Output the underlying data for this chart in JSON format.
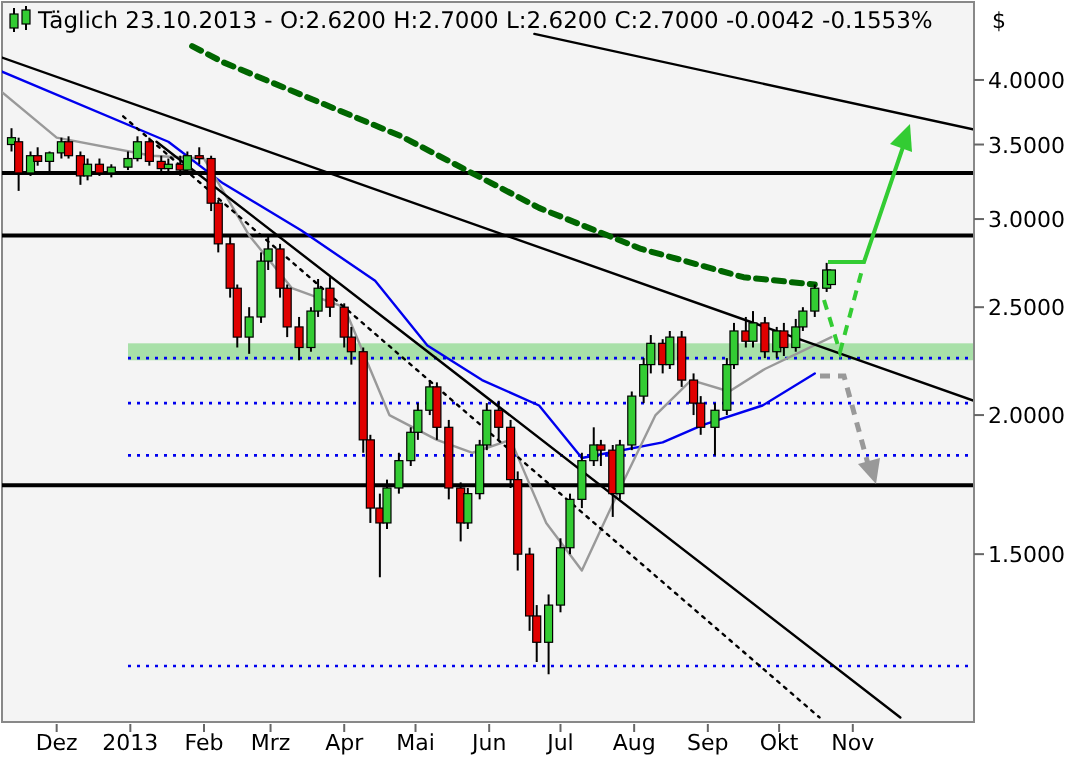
{
  "chart_data": {
    "type": "candlestick",
    "title": "Täglich 23.10.2013 - O:2.6200 H:2.7000 L:2.6200 C:2.7000 -0.0042 -0.1553%",
    "ylabel": "$",
    "log": true,
    "xlim": [
      "2012-11-08",
      "2013-12-22"
    ],
    "ylim": [
      1.06,
      4.7
    ],
    "xticks": [
      {
        "value": "2012-12-01",
        "label": "Dez"
      },
      {
        "value": "2013-01-01",
        "label": "2013"
      },
      {
        "value": "2013-02-01",
        "label": "Feb"
      },
      {
        "value": "2013-03-01",
        "label": "Mrz"
      },
      {
        "value": "2013-04-01",
        "label": "Apr"
      },
      {
        "value": "2013-05-01",
        "label": "Mai"
      },
      {
        "value": "2013-06-01",
        "label": "Jun"
      },
      {
        "value": "2013-07-01",
        "label": "Jul"
      },
      {
        "value": "2013-08-01",
        "label": "Aug"
      },
      {
        "value": "2013-09-01",
        "label": "Sep"
      },
      {
        "value": "2013-10-01",
        "label": "Okt"
      },
      {
        "value": "2013-11-01",
        "label": "Nov"
      }
    ],
    "yticks": [
      {
        "value": 1.5,
        "label": "1.5000"
      },
      {
        "value": 2,
        "label": "2.0000"
      },
      {
        "value": 2.5,
        "label": "2.5000"
      },
      {
        "value": 3,
        "label": "3.0000"
      },
      {
        "value": 3.5,
        "label": "3.5000"
      },
      {
        "value": 4,
        "label": "4.0000"
      }
    ],
    "grid": false,
    "x": [
      "2012-11-12",
      "2012-11-15",
      "2012-11-20",
      "2012-11-23",
      "2012-11-28",
      "2012-12-03",
      "2012-12-06",
      "2012-12-11",
      "2012-12-14",
      "2012-12-19",
      "2012-12-24",
      "2012-12-31",
      "2013-01-04",
      "2013-01-09",
      "2013-01-14",
      "2013-01-17",
      "2013-01-22",
      "2013-01-25",
      "2013-01-30",
      "2013-02-04",
      "2013-02-07",
      "2013-02-12",
      "2013-02-15",
      "2013-02-20",
      "2013-02-25",
      "2013-02-28",
      "2013-03-05",
      "2013-03-08",
      "2013-03-13",
      "2013-03-18",
      "2013-03-21",
      "2013-03-26",
      "2013-04-01",
      "2013-04-04",
      "2013-04-09",
      "2013-04-12",
      "2013-04-16",
      "2013-04-19",
      "2013-04-24",
      "2013-04-29",
      "2013-05-02",
      "2013-05-07",
      "2013-05-10",
      "2013-05-15",
      "2013-05-20",
      "2013-05-23",
      "2013-05-28",
      "2013-05-31",
      "2013-06-05",
      "2013-06-10",
      "2013-06-13",
      "2013-06-18",
      "2013-06-21",
      "2013-06-26",
      "2013-07-01",
      "2013-07-05",
      "2013-07-10",
      "2013-07-15",
      "2013-07-18",
      "2013-07-23",
      "2013-07-26",
      "2013-07-31",
      "2013-08-05",
      "2013-08-08",
      "2013-08-13",
      "2013-08-16",
      "2013-08-21",
      "2013-08-26",
      "2013-08-29",
      "2013-09-04",
      "2013-09-09",
      "2013-09-12",
      "2013-09-17",
      "2013-09-20",
      "2013-09-25",
      "2013-09-30",
      "2013-10-03",
      "2013-10-08",
      "2013-10-11",
      "2013-10-16",
      "2013-10-21",
      "2013-10-23"
    ],
    "ohlc": [
      [
        3.5,
        3.62,
        3.45,
        3.55
      ],
      [
        3.52,
        3.55,
        3.18,
        3.3
      ],
      [
        3.3,
        3.45,
        3.28,
        3.42
      ],
      [
        3.42,
        3.48,
        3.35,
        3.38
      ],
      [
        3.38,
        3.45,
        3.3,
        3.44
      ],
      [
        3.44,
        3.55,
        3.4,
        3.52
      ],
      [
        3.52,
        3.56,
        3.4,
        3.42
      ],
      [
        3.42,
        3.45,
        3.22,
        3.28
      ],
      [
        3.28,
        3.4,
        3.25,
        3.36
      ],
      [
        3.36,
        3.4,
        3.28,
        3.3
      ],
      [
        3.3,
        3.36,
        3.27,
        3.34
      ],
      [
        3.34,
        3.45,
        3.32,
        3.4
      ],
      [
        3.4,
        3.56,
        3.38,
        3.52
      ],
      [
        3.52,
        3.55,
        3.35,
        3.38
      ],
      [
        3.38,
        3.42,
        3.3,
        3.33
      ],
      [
        3.33,
        3.4,
        3.3,
        3.36
      ],
      [
        3.36,
        3.42,
        3.28,
        3.32
      ],
      [
        3.32,
        3.45,
        3.3,
        3.42
      ],
      [
        3.42,
        3.48,
        3.36,
        3.4
      ],
      [
        3.4,
        3.42,
        3.05,
        3.1
      ],
      [
        3.1,
        3.12,
        2.8,
        2.85
      ],
      [
        2.85,
        2.9,
        2.55,
        2.6
      ],
      [
        2.6,
        2.62,
        2.3,
        2.35
      ],
      [
        2.35,
        2.5,
        2.27,
        2.45
      ],
      [
        2.45,
        2.8,
        2.42,
        2.75
      ],
      [
        2.75,
        2.9,
        2.7,
        2.82
      ],
      [
        2.82,
        2.85,
        2.55,
        2.6
      ],
      [
        2.6,
        2.62,
        2.35,
        2.4
      ],
      [
        2.4,
        2.45,
        2.24,
        2.3
      ],
      [
        2.3,
        2.5,
        2.28,
        2.48
      ],
      [
        2.48,
        2.65,
        2.45,
        2.6
      ],
      [
        2.6,
        2.66,
        2.45,
        2.5
      ],
      [
        2.5,
        2.52,
        2.3,
        2.35
      ],
      [
        2.35,
        2.4,
        2.22,
        2.28
      ],
      [
        2.28,
        2.3,
        1.85,
        1.9
      ],
      [
        1.9,
        1.92,
        1.6,
        1.65
      ],
      [
        1.65,
        1.7,
        1.43,
        1.6
      ],
      [
        1.6,
        1.75,
        1.58,
        1.72
      ],
      [
        1.72,
        1.85,
        1.7,
        1.82
      ],
      [
        1.82,
        1.95,
        1.8,
        1.93
      ],
      [
        1.93,
        2.05,
        1.9,
        2.02
      ],
      [
        2.02,
        2.15,
        2.0,
        2.12
      ],
      [
        2.12,
        2.14,
        1.9,
        1.95
      ],
      [
        1.95,
        1.98,
        1.68,
        1.72
      ],
      [
        1.72,
        1.74,
        1.54,
        1.6
      ],
      [
        1.6,
        1.72,
        1.58,
        1.7
      ],
      [
        1.7,
        1.9,
        1.68,
        1.88
      ],
      [
        1.88,
        2.05,
        1.86,
        2.02
      ],
      [
        2.02,
        2.06,
        1.9,
        1.95
      ],
      [
        1.95,
        1.98,
        1.72,
        1.75
      ],
      [
        1.75,
        1.78,
        1.45,
        1.5
      ],
      [
        1.5,
        1.52,
        1.28,
        1.32
      ],
      [
        1.32,
        1.35,
        1.2,
        1.25
      ],
      [
        1.25,
        1.38,
        1.17,
        1.35
      ],
      [
        1.35,
        1.55,
        1.33,
        1.52
      ],
      [
        1.52,
        1.7,
        1.5,
        1.68
      ],
      [
        1.68,
        1.85,
        1.65,
        1.82
      ],
      [
        1.82,
        1.95,
        1.8,
        1.88
      ],
      [
        1.88,
        1.9,
        1.8,
        1.86
      ],
      [
        1.86,
        1.88,
        1.62,
        1.7
      ],
      [
        1.7,
        1.9,
        1.68,
        1.88
      ],
      [
        1.88,
        2.1,
        1.86,
        2.08
      ],
      [
        2.08,
        2.25,
        2.05,
        2.22
      ],
      [
        2.22,
        2.36,
        2.18,
        2.32
      ],
      [
        2.32,
        2.34,
        2.18,
        2.22
      ],
      [
        2.22,
        2.38,
        2.2,
        2.35
      ],
      [
        2.35,
        2.38,
        2.12,
        2.15
      ],
      [
        2.15,
        2.18,
        2.0,
        2.05
      ],
      [
        2.05,
        2.08,
        1.92,
        1.95
      ],
      [
        1.95,
        2.05,
        1.84,
        2.02
      ],
      [
        2.02,
        2.25,
        2.0,
        2.22
      ],
      [
        2.22,
        2.42,
        2.2,
        2.38
      ],
      [
        2.38,
        2.45,
        2.3,
        2.33
      ],
      [
        2.33,
        2.48,
        2.3,
        2.42
      ],
      [
        2.42,
        2.45,
        2.25,
        2.28
      ],
      [
        2.28,
        2.4,
        2.25,
        2.38
      ],
      [
        2.38,
        2.42,
        2.26,
        2.3
      ],
      [
        2.3,
        2.44,
        2.28,
        2.4
      ],
      [
        2.4,
        2.5,
        2.38,
        2.48
      ],
      [
        2.48,
        2.62,
        2.45,
        2.6
      ],
      [
        2.6,
        2.74,
        2.58,
        2.7
      ],
      [
        2.62,
        2.7,
        2.62,
        2.7
      ]
    ],
    "colors": [
      "#33cc33",
      "#e00000",
      "#33cc33",
      "#e00000",
      "#33cc33",
      "#33cc33",
      "#e00000",
      "#e00000",
      "#33cc33",
      "#e00000",
      "#33cc33",
      "#33cc33",
      "#33cc33",
      "#e00000",
      "#e00000",
      "#33cc33",
      "#e00000",
      "#33cc33",
      "#e00000",
      "#e00000",
      "#e00000",
      "#e00000",
      "#e00000",
      "#33cc33",
      "#33cc33",
      "#33cc33",
      "#e00000",
      "#e00000",
      "#e00000",
      "#33cc33",
      "#33cc33",
      "#e00000",
      "#e00000",
      "#e00000",
      "#e00000",
      "#e00000",
      "#e00000",
      "#33cc33",
      "#33cc33",
      "#33cc33",
      "#33cc33",
      "#33cc33",
      "#e00000",
      "#e00000",
      "#e00000",
      "#33cc33",
      "#33cc33",
      "#33cc33",
      "#e00000",
      "#e00000",
      "#e00000",
      "#e00000",
      "#e00000",
      "#33cc33",
      "#33cc33",
      "#33cc33",
      "#33cc33",
      "#33cc33",
      "#e00000",
      "#e00000",
      "#33cc33",
      "#33cc33",
      "#33cc33",
      "#33cc33",
      "#e00000",
      "#33cc33",
      "#e00000",
      "#e00000",
      "#e00000",
      "#33cc33",
      "#33cc33",
      "#33cc33",
      "#e00000",
      "#33cc33",
      "#e00000",
      "#33cc33",
      "#e00000",
      "#33cc33",
      "#33cc33",
      "#33cc33",
      "#33cc33",
      "#33cc33"
    ],
    "series": [
      {
        "type": "line",
        "color": "#0000ee",
        "line_style": "solid",
        "x": [
          "2012-11-08",
          "2013-01-17",
          "2013-02-09",
          "2013-03-14",
          "2013-04-14",
          "2013-05-06",
          "2013-05-29",
          "2013-06-22",
          "2013-07-10",
          "2013-08-13",
          "2013-08-30",
          "2013-09-24",
          "2013-10-16"
        ],
        "values": [
          4.07,
          3.52,
          3.23,
          2.93,
          2.64,
          2.31,
          2.15,
          2.04,
          1.83,
          1.89,
          1.96,
          2.04,
          2.18
        ]
      },
      {
        "type": "line",
        "color": "#999999",
        "line_style": "solid",
        "x": [
          "2012-11-08",
          "2012-12-01",
          "2013-01-10",
          "2013-02-01",
          "2013-02-20",
          "2013-03-10",
          "2013-04-01",
          "2013-04-20",
          "2013-05-10",
          "2013-05-25",
          "2013-06-10",
          "2013-06-25",
          "2013-07-10",
          "2013-07-25",
          "2013-08-10",
          "2013-08-25",
          "2013-09-10",
          "2013-09-25",
          "2013-10-23"
        ],
        "values": [
          3.9,
          3.55,
          3.42,
          3.4,
          2.9,
          2.6,
          2.5,
          2.0,
          1.9,
          1.85,
          1.9,
          1.6,
          1.45,
          1.7,
          2.0,
          2.15,
          2.1,
          2.2,
          2.35
        ]
      },
      {
        "type": "line",
        "color": "#006600",
        "line_style": "dashed",
        "x": [
          "2013-01-27",
          "2013-02-09",
          "2013-04-25",
          "2013-06-22",
          "2013-08-04",
          "2013-09-16",
          "2013-10-16"
        ],
        "values": [
          4.29,
          4.15,
          3.56,
          3.07,
          2.82,
          2.66,
          2.62
        ]
      },
      {
        "type": "line",
        "color": "#000000",
        "line_style": "solid",
        "x": [
          "2012-11-08",
          "2013-12-22"
        ],
        "values": [
          4.19,
          2.06
        ]
      },
      {
        "type": "line",
        "color": "#000000",
        "line_style": "solid",
        "x": [
          "2013-06-20",
          "2013-12-22"
        ],
        "values": [
          4.4,
          3.61
        ]
      },
      {
        "type": "line",
        "color": "#000000",
        "line_style": "solid",
        "x": [
          "2013-01-12",
          "2013-11-21"
        ],
        "values": [
          3.52,
          1.07
        ]
      },
      {
        "type": "line",
        "color": "#000000",
        "line_style": "dotted",
        "x": [
          "2012-12-29",
          "2013-10-18"
        ],
        "values": [
          3.71,
          1.07
        ]
      }
    ],
    "bands": [
      {
        "axis": "y",
        "from": 2.24,
        "to": 2.32,
        "color": "#a8e0a8"
      }
    ],
    "ref_lines": [
      {
        "axis": "y",
        "value": 3.3,
        "color": "#000000",
        "line_style": "solid"
      },
      {
        "axis": "y",
        "value": 2.9,
        "color": "#000000",
        "line_style": "solid"
      },
      {
        "axis": "y",
        "value": 2.25,
        "color": "#0000ee",
        "line_style": "dotted"
      },
      {
        "axis": "y",
        "value": 2.05,
        "color": "#0000ee",
        "line_style": "dotted"
      },
      {
        "axis": "y",
        "value": 1.84,
        "color": "#0000ee",
        "line_style": "dotted"
      },
      {
        "axis": "y",
        "value": 1.73,
        "color": "#000000",
        "line_style": "solid"
      },
      {
        "axis": "y",
        "value": 1.19,
        "color": "#0000ee",
        "line_style": "dotted"
      }
    ]
  }
}
